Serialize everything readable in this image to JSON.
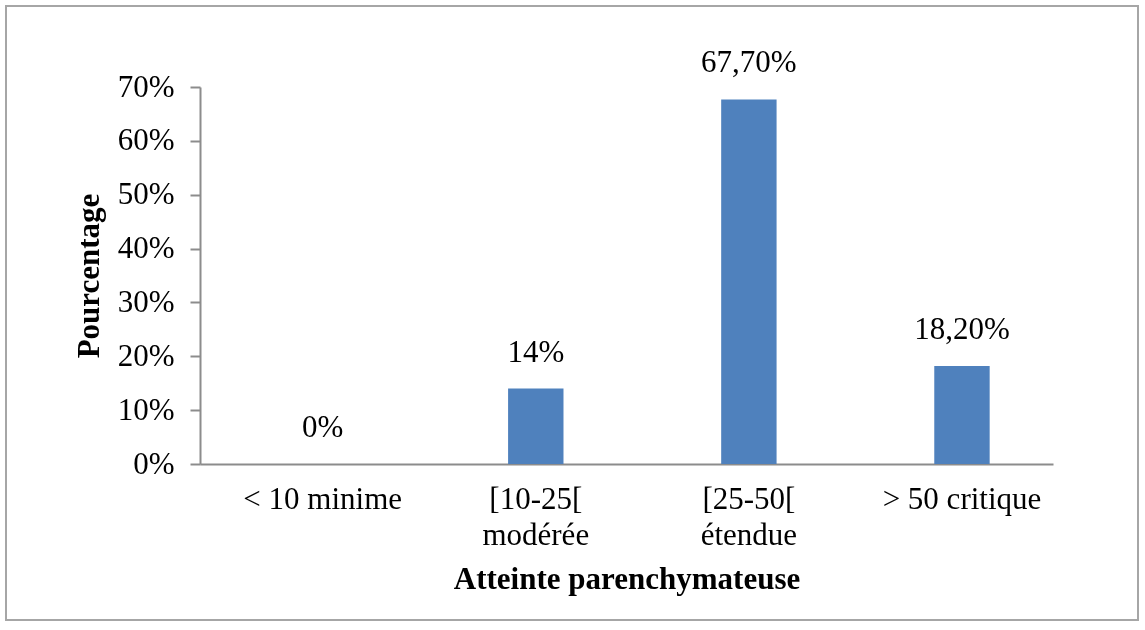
{
  "chart_data": {
    "type": "bar",
    "xlabel": "Atteinte parenchymateuse",
    "ylabel": "Pourcentage",
    "categories": [
      "< 10 minime",
      "[10-25[ modérée",
      "[25-50[ étendue",
      "> 50 critique"
    ],
    "values": [
      0,
      14,
      67.7,
      18.2
    ],
    "value_labels": [
      "0%",
      "14%",
      "67,70%",
      "18,20%"
    ],
    "color": "#4f81bd",
    "ylim": [
      0,
      70
    ],
    "yticks": [
      {
        "value": 0,
        "label": "0%"
      },
      {
        "value": 10,
        "label": "10%"
      },
      {
        "value": 20,
        "label": "20%"
      },
      {
        "value": 30,
        "label": "30%"
      },
      {
        "value": 40,
        "label": "40%"
      },
      {
        "value": 50,
        "label": "50%"
      },
      {
        "value": 60,
        "label": "60%"
      },
      {
        "value": 70,
        "label": "70%"
      }
    ]
  }
}
